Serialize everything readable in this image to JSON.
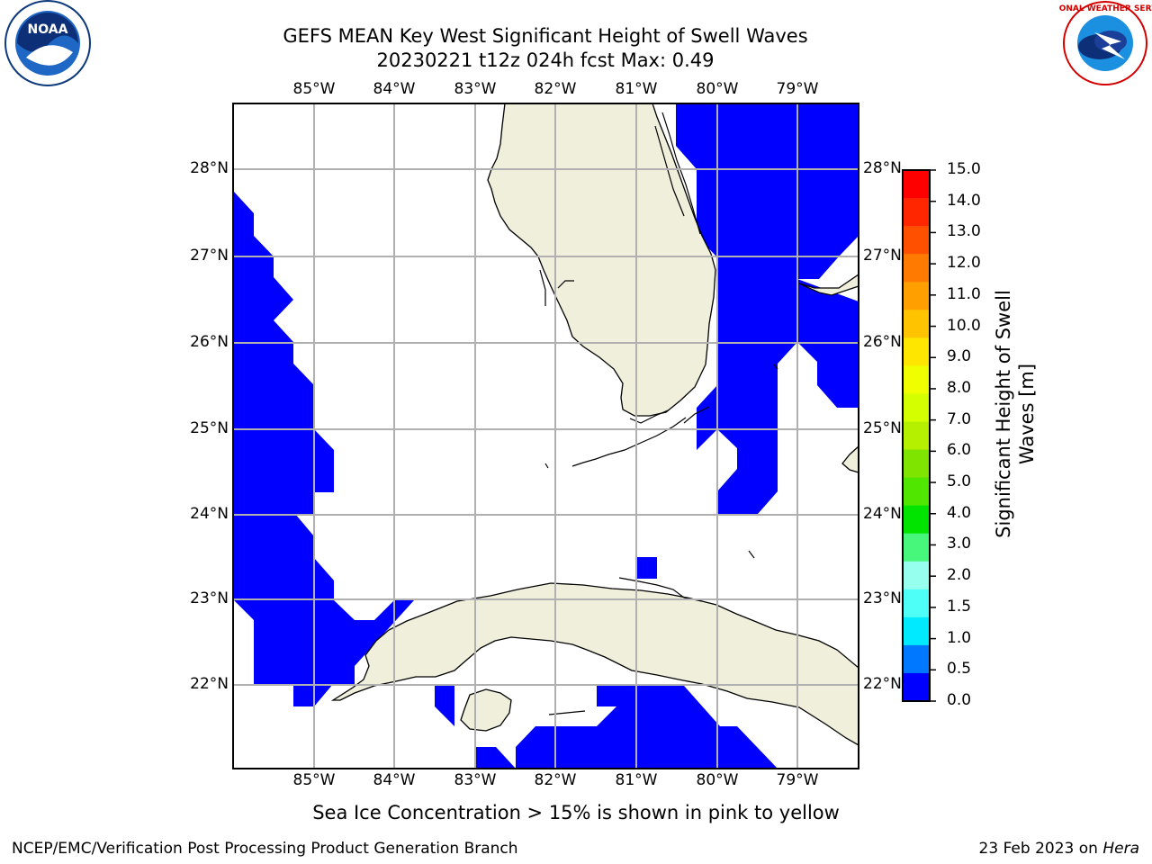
{
  "title": {
    "line1": "GEFS MEAN Key West Significant Height of Swell Waves",
    "line2": "20230221 t12z 024h fcst   Max: 0.49"
  },
  "logos": {
    "left": "NOAA",
    "right": "NATIONAL WEATHER SERVICE"
  },
  "map": {
    "lon_labels": [
      "85°W",
      "84°W",
      "83°W",
      "82°W",
      "81°W",
      "80°W",
      "79°W"
    ],
    "lat_labels": [
      "28°N",
      "27°N",
      "26°N",
      "25°N",
      "24°N",
      "23°N",
      "22°N"
    ],
    "land_color": "#efefdc",
    "swell_color": "#0000ff"
  },
  "colorbar": {
    "title_line1": "Significant Height of Swell",
    "title_line2": "Waves [m]",
    "labels": [
      "15.0",
      "14.0",
      "13.0",
      "12.0",
      "11.0",
      "10.0",
      "9.0",
      "8.0",
      "7.0",
      "6.0",
      "5.0",
      "4.0",
      "3.0",
      "2.0",
      "1.5",
      "1.0",
      "0.5",
      "0.0"
    ],
    "colors": [
      "#ff0000",
      "#ff2600",
      "#ff5000",
      "#ff7a00",
      "#ff9f00",
      "#ffc300",
      "#ffe600",
      "#f0ff00",
      "#d4ff00",
      "#b4f000",
      "#7fe500",
      "#50e600",
      "#00e400",
      "#47f77b",
      "#96ffee",
      "#4dfff7",
      "#00eaff",
      "#0078ff",
      "#0000ff"
    ]
  },
  "caption": "Sea Ice Concentration > 15% is shown in pink to yellow",
  "footer": {
    "left": "NCEP/EMC/Verification Post Processing Product Generation Branch",
    "right_prefix": "23 Feb 2023 on ",
    "right_italic": "Hera"
  }
}
